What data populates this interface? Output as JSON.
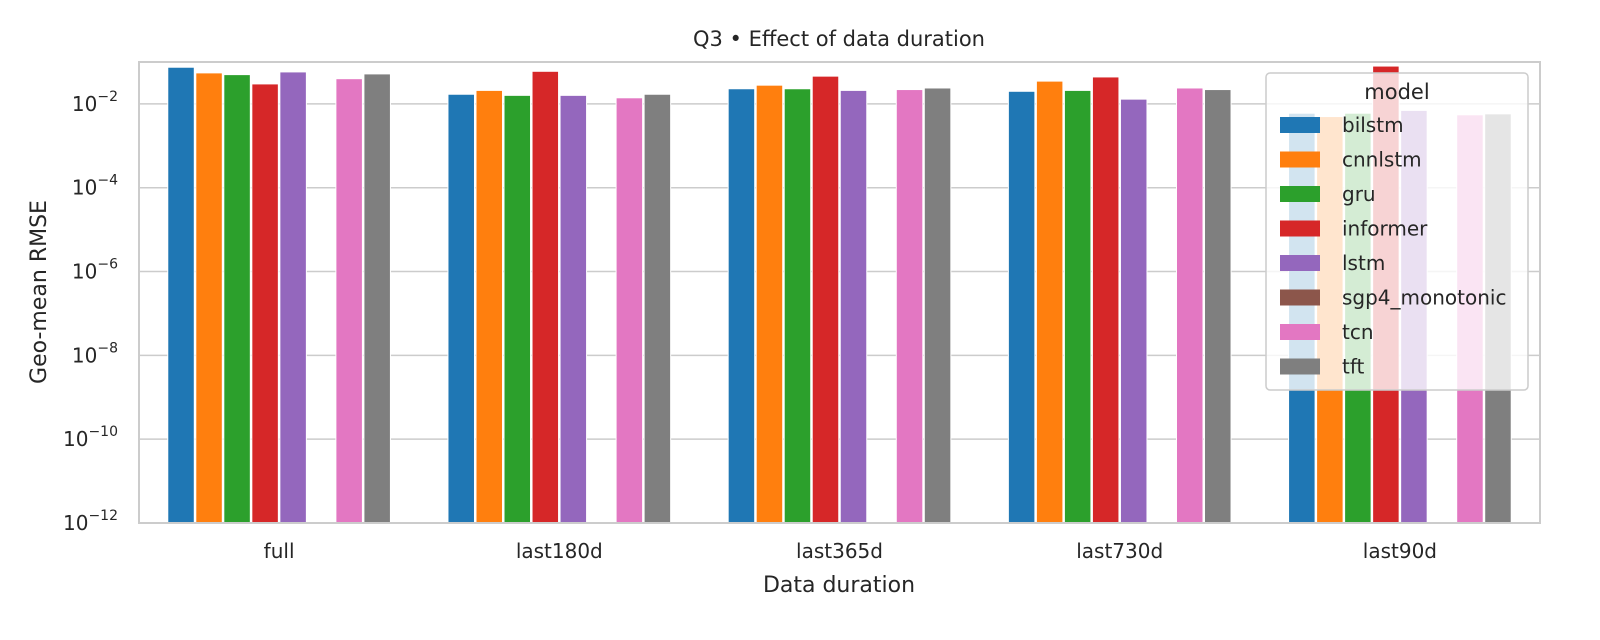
{
  "chart_data": {
    "type": "bar",
    "title": "Q3 • Effect of data duration",
    "xlabel": "Data duration",
    "ylabel": "Geo-mean RMSE",
    "yscale": "log",
    "ylim": [
      1e-12,
      0.1
    ],
    "yticks": [
      {
        "base": "10",
        "exp": "−12"
      },
      {
        "base": "10",
        "exp": "−10"
      },
      {
        "base": "10",
        "exp": "−8"
      },
      {
        "base": "10",
        "exp": "−6"
      },
      {
        "base": "10",
        "exp": "−4"
      },
      {
        "base": "10",
        "exp": "−2"
      }
    ],
    "grid": true,
    "legend_position": "top-right",
    "legend_title": "model",
    "categories": [
      "full",
      "last180d",
      "last365d",
      "last730d",
      "last90d"
    ],
    "series": [
      {
        "name": "bilstm",
        "color": "#1f77b4",
        "values": [
          0.075,
          0.017,
          0.023,
          0.02,
          0.006
        ]
      },
      {
        "name": "cnnlstm",
        "color": "#ff7f0e",
        "values": [
          0.055,
          0.021,
          0.028,
          0.035,
          0.005
        ]
      },
      {
        "name": "gru",
        "color": "#2ca02c",
        "values": [
          0.05,
          0.016,
          0.023,
          0.021,
          0.006
        ]
      },
      {
        "name": "informer",
        "color": "#d62728",
        "values": [
          0.03,
          0.06,
          0.046,
          0.044,
          0.08
        ]
      },
      {
        "name": "lstm",
        "color": "#9467bd",
        "values": [
          0.058,
          0.016,
          0.021,
          0.013,
          0.007
        ]
      },
      {
        "name": "sgp4_monotonic",
        "color": "#8c564b",
        "values": [
          null,
          null,
          null,
          null,
          null
        ]
      },
      {
        "name": "tcn",
        "color": "#e377c2",
        "values": [
          0.04,
          0.014,
          0.022,
          0.024,
          0.0055
        ]
      },
      {
        "name": "tft",
        "color": "#7f7f7f",
        "values": [
          0.052,
          0.017,
          0.024,
          0.022,
          0.0058
        ]
      }
    ]
  }
}
